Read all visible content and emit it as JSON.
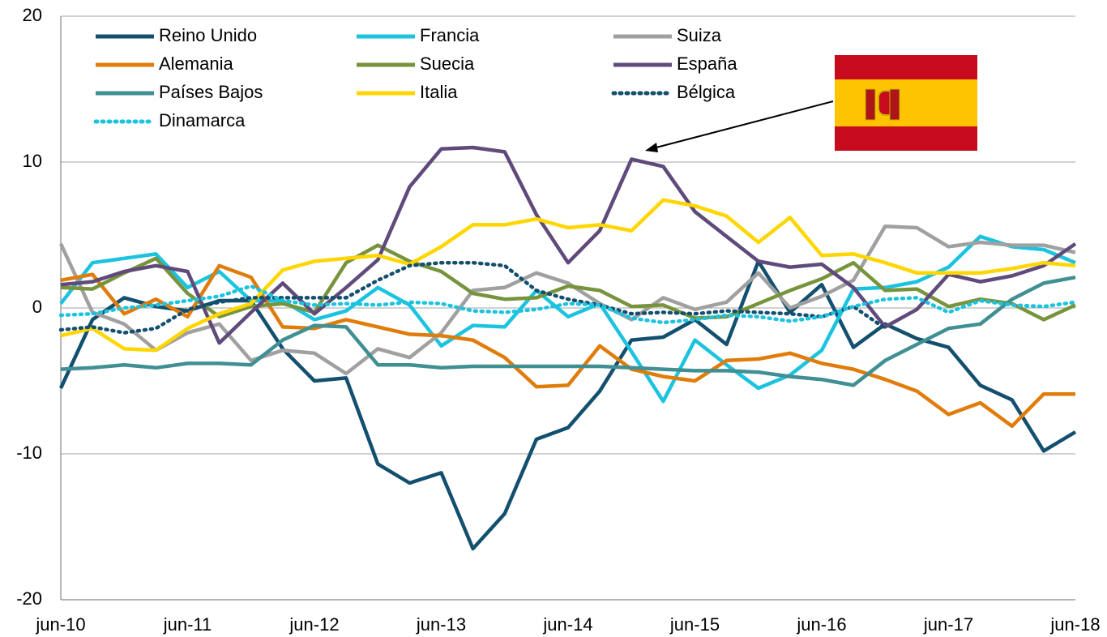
{
  "chart_data": {
    "type": "line",
    "categories": [
      "jun-10",
      null,
      null,
      null,
      "jun-11",
      null,
      null,
      null,
      "jun-12",
      null,
      null,
      null,
      "jun-13",
      null,
      null,
      null,
      "jun-14",
      null,
      null,
      null,
      "jun-15",
      null,
      null,
      null,
      "jun-16",
      null,
      null,
      null,
      "jun-17",
      null,
      null,
      null,
      "jun-18"
    ],
    "ylim": [
      -20,
      20
    ],
    "yticks": [
      -20,
      -10,
      0,
      10,
      20
    ],
    "grid": true,
    "series": [
      {
        "name": "Reino Unido",
        "color": "#134f6e",
        "dash": "solid",
        "values": [
          -5.5,
          -0.8,
          0.7,
          0.1,
          -0.2,
          0.5,
          0.5,
          -2.8,
          -5,
          -4.8,
          -10.7,
          -12,
          -11.3,
          -16.5,
          -14.1,
          -9,
          -8.2,
          -5.7,
          -2.2,
          -2,
          -0.8,
          -2.5,
          3.2,
          -0.3,
          1.6,
          -2.7,
          -1.1,
          -2.1,
          -2.7,
          -5.3,
          -6.3,
          -9.8,
          -8.5
        ]
      },
      {
        "name": "Francia",
        "color": "#1cc3df",
        "dash": "solid",
        "values": [
          0.3,
          3.1,
          3.4,
          3.7,
          1.4,
          2.5,
          0.5,
          0.5,
          -0.8,
          -0.2,
          1.4,
          0.2,
          -2.6,
          -1.2,
          -1.3,
          1.2,
          -0.6,
          0.3,
          -3,
          -6.4,
          -2.2,
          -3.9,
          -5.5,
          -4.6,
          -2.9,
          1.3,
          1.4,
          1.8,
          2.8,
          4.9,
          4.2,
          4,
          3.1
        ]
      },
      {
        "name": "Suiza",
        "color": "#a0a0a0",
        "dash": "solid",
        "values": [
          4.4,
          -0.3,
          -1.1,
          -2.9,
          -1.7,
          -1.1,
          -3.6,
          -2.9,
          -3.1,
          -4.5,
          -2.8,
          -3.4,
          -1.7,
          1.2,
          1.4,
          2.4,
          1.7,
          0.3,
          -0.8,
          0.7,
          -0.1,
          0.4,
          2.4,
          0,
          0.8,
          1.9,
          5.6,
          5.5,
          4.2,
          4.5,
          4.3,
          4.3,
          3.8
        ]
      },
      {
        "name": "Alemania",
        "color": "#e07c0a",
        "dash": "solid",
        "values": [
          1.9,
          2.3,
          -0.4,
          0.6,
          -0.6,
          2.9,
          2.1,
          -1.3,
          -1.4,
          -0.8,
          -1.3,
          -1.8,
          -1.9,
          -2.2,
          -3.4,
          -5.4,
          -5.3,
          -2.6,
          -4.2,
          -4.7,
          -5,
          -3.6,
          -3.5,
          -3.1,
          -3.8,
          -4.2,
          -4.9,
          -5.7,
          -7.3,
          -6.5,
          -8.1,
          -5.9,
          -5.9
        ]
      },
      {
        "name": "Suecia",
        "color": "#77943d",
        "dash": "solid",
        "values": [
          1.4,
          1.3,
          2.4,
          3.4,
          1,
          -0.6,
          0.1,
          0.3,
          -0.3,
          3.1,
          4.3,
          3.2,
          2.5,
          1,
          0.6,
          0.7,
          1.5,
          1.2,
          0.1,
          0.2,
          -0.7,
          -0.6,
          0.3,
          1.2,
          2,
          3.1,
          1.2,
          1.3,
          0.1,
          0.6,
          0.3,
          -0.8,
          0.2
        ]
      },
      {
        "name": "España",
        "color": "#604a7b",
        "dash": "solid",
        "values": [
          1.6,
          1.8,
          2.5,
          2.9,
          2.5,
          -2.4,
          -0.3,
          1.7,
          -0.4,
          1.4,
          3.3,
          8.3,
          10.9,
          11,
          10.7,
          6.4,
          3.1,
          5.3,
          10.2,
          9.7,
          6.6,
          4.9,
          3.2,
          2.8,
          3,
          1.4,
          -1.3,
          -0.1,
          2.3,
          1.8,
          2.2,
          2.9,
          4.4
        ]
      },
      {
        "name": "Países Bajos",
        "color": "#3f8f93",
        "dash": "solid",
        "values": [
          -4.2,
          -4.1,
          -3.9,
          -4.1,
          -3.8,
          -3.8,
          -3.9,
          -2.2,
          -1.2,
          -1.3,
          -3.9,
          -3.9,
          -4.1,
          -4,
          -4,
          -4,
          -4,
          -4,
          -4.1,
          -4.2,
          -4.3,
          -4.3,
          -4.4,
          -4.7,
          -4.9,
          -5.3,
          -3.6,
          -2.5,
          -1.4,
          -1.1,
          0.6,
          1.7,
          2.1
        ]
      },
      {
        "name": "Italia",
        "color": "#ffd600",
        "dash": "solid",
        "values": [
          -1.9,
          -1.4,
          -2.8,
          -2.9,
          -1.4,
          -0.4,
          0.3,
          2.6,
          3.2,
          3.4,
          3.6,
          3,
          4.2,
          5.7,
          5.7,
          6.1,
          5.5,
          5.7,
          5.3,
          7.4,
          7,
          6.3,
          4.5,
          6.2,
          3.6,
          3.7,
          3.1,
          2.4,
          2.4,
          2.4,
          2.7,
          3.1,
          2.9
        ]
      },
      {
        "name": "Bélgica",
        "color": "#134f6e",
        "dash": "dotted",
        "values": [
          -1.5,
          -1.3,
          -1.7,
          -1.4,
          -0.1,
          0.4,
          0.7,
          0.7,
          0.7,
          0.7,
          1.9,
          2.9,
          3.1,
          3.1,
          2.9,
          1.2,
          0.6,
          0.2,
          -0.4,
          -0.3,
          -0.4,
          -0.2,
          -0.3,
          -0.4,
          -0.6,
          0.1,
          -1.4,
          null,
          null,
          null,
          null,
          null,
          null
        ]
      },
      {
        "name": "Dinamarca",
        "color": "#1cc3df",
        "dash": "dotted",
        "values": [
          -0.5,
          -0.4,
          0,
          0.2,
          0.5,
          0.8,
          1.5,
          0.5,
          0.2,
          0.3,
          0.2,
          0.4,
          0.3,
          -0.2,
          -0.3,
          -0.1,
          0.3,
          0.2,
          -0.7,
          -1,
          -0.8,
          -0.5,
          -0.6,
          -0.9,
          -0.6,
          0.1,
          0.6,
          0.7,
          -0.3,
          0.5,
          0.2,
          0.1,
          0.4
        ]
      }
    ]
  }
}
